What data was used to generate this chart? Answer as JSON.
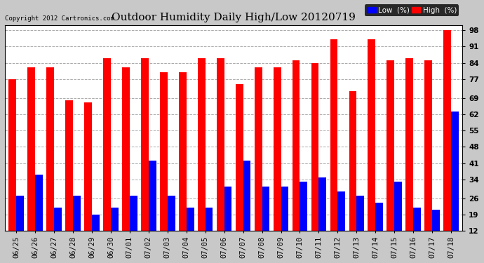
{
  "title": "Outdoor Humidity Daily High/Low 20120719",
  "copyright": "Copyright 2012 Cartronics.com",
  "categories": [
    "06/25",
    "06/26",
    "06/27",
    "06/28",
    "06/29",
    "06/30",
    "07/01",
    "07/02",
    "07/03",
    "07/04",
    "07/05",
    "07/06",
    "07/07",
    "07/08",
    "07/09",
    "07/10",
    "07/11",
    "07/12",
    "07/13",
    "07/14",
    "07/15",
    "07/16",
    "07/17",
    "07/18"
  ],
  "high_values": [
    77,
    82,
    82,
    68,
    67,
    86,
    82,
    86,
    80,
    80,
    86,
    86,
    75,
    82,
    82,
    85,
    84,
    94,
    72,
    94,
    85,
    86,
    85,
    98
  ],
  "low_values": [
    27,
    36,
    22,
    27,
    19,
    22,
    27,
    42,
    27,
    22,
    22,
    31,
    42,
    31,
    31,
    33,
    35,
    29,
    27,
    24,
    33,
    22,
    21,
    63
  ],
  "high_color": "#ff0000",
  "low_color": "#0000ff",
  "bg_color": "#c8c8c8",
  "plot_bg_color": "#ffffff",
  "grid_color": "#aaaaaa",
  "yticks": [
    12,
    19,
    26,
    34,
    41,
    48,
    55,
    62,
    69,
    77,
    84,
    91,
    98
  ],
  "ytick_labels": [
    "12",
    "19",
    "26",
    "34",
    "41",
    "48",
    "55",
    "62",
    "69",
    "77",
    "84",
    "91",
    "98"
  ],
  "ymin": 12,
  "ymax": 100,
  "bar_width": 0.4,
  "title_fontsize": 11,
  "copyright_fontsize": 6.5,
  "axis_fontsize": 7.5,
  "legend_fontsize": 7.5
}
